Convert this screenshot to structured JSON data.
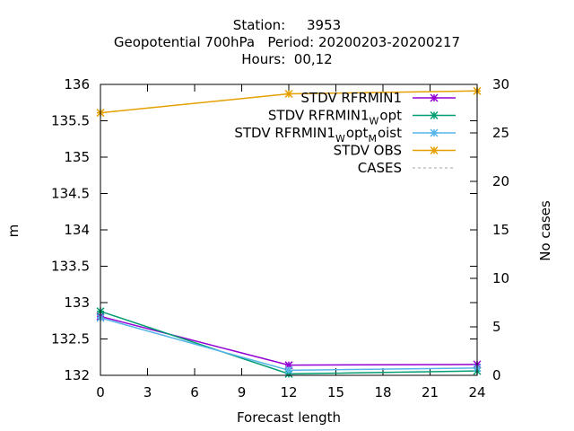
{
  "chart_data": {
    "type": "line",
    "title_lines": [
      "Station:     3953",
      "Geopotential 700hPa   Period: 20200203-20200217",
      "Hours:  00,12"
    ],
    "xlabel": "Forecast length",
    "ylabel": "m",
    "y2label": "No cases",
    "x_ticks": [
      0,
      3,
      6,
      9,
      12,
      15,
      18,
      21,
      24
    ],
    "xlim": [
      0,
      24
    ],
    "ylim": [
      132,
      136
    ],
    "y_ticks": [
      132,
      132.5,
      133,
      133.5,
      134,
      134.5,
      135,
      135.5,
      136
    ],
    "y2lim": [
      0,
      30
    ],
    "y2_ticks": [
      0,
      5,
      10,
      15,
      20,
      25,
      30
    ],
    "grid": false,
    "legend_position": "top-right",
    "x": [
      0,
      12,
      24
    ],
    "series": [
      {
        "key": "rfrmin1",
        "legend_main": "STDV RFRMIN1",
        "legend_parts": [],
        "color": "#9400d3",
        "marker": "x",
        "axis": "y",
        "values": [
          132.81,
          132.14,
          132.15
        ]
      },
      {
        "key": "wopt",
        "legend_main": "STDV RFRMIN1",
        "legend_parts": [
          {
            "sub": "W",
            "text": "opt"
          }
        ],
        "color": "#009e73",
        "marker": "x",
        "axis": "y",
        "values": [
          132.88,
          132.02,
          132.06
        ]
      },
      {
        "key": "wopt-moist",
        "legend_main": "STDV RFRMIN1",
        "legend_parts": [
          {
            "sub": "W",
            "text": "opt"
          },
          {
            "sub": "M",
            "text": "oist"
          }
        ],
        "color": "#56b4e9",
        "marker": "x",
        "axis": "y",
        "values": [
          132.79,
          132.07,
          132.1
        ]
      },
      {
        "key": "obs",
        "legend_main": "STDV OBS",
        "legend_parts": [],
        "color": "#e69f00",
        "marker": "x",
        "axis": "y",
        "values": [
          135.61,
          135.87,
          135.91
        ]
      },
      {
        "key": "cases",
        "legend_main": "CASES",
        "legend_parts": [],
        "color": "#a0a0a0",
        "marker": "none",
        "dashed": true,
        "axis": "y2",
        "values": [
          30,
          30,
          30
        ]
      }
    ]
  }
}
